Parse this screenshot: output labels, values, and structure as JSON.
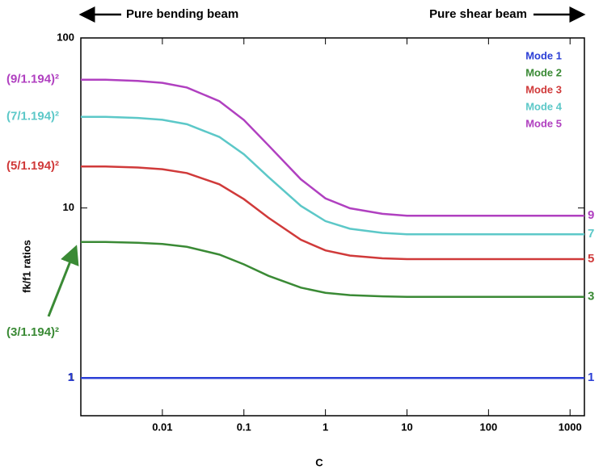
{
  "chart_data": {
    "type": "line",
    "top_left_label": "Pure bending beam",
    "top_right_label": "Pure shear beam",
    "xlabel": "C",
    "ylabel": "fk/f1 ratios",
    "log_x": true,
    "log_y": true,
    "xlim": [
      0.001,
      1500
    ],
    "ylim": [
      0.6,
      100
    ],
    "xticks": [
      0.01,
      0.1,
      1,
      10,
      100,
      1000
    ],
    "yticks": [
      1,
      10,
      100
    ],
    "legend": "upper right",
    "x": [
      0.001,
      0.002,
      0.005,
      0.01,
      0.02,
      0.05,
      0.1,
      0.2,
      0.5,
      1,
      2,
      5,
      10,
      100,
      1000,
      1500
    ],
    "series": [
      {
        "name": "Mode 1",
        "color": "#2b3fd6",
        "end_label": "1",
        "start_label": "1",
        "values": [
          1,
          1,
          1,
          1,
          1,
          1,
          1,
          1,
          1,
          1,
          1,
          1,
          1,
          1,
          1,
          1
        ]
      },
      {
        "name": "Mode 2",
        "color": "#3a8a35",
        "end_label": "3",
        "start_label": "(3/1.194)²",
        "values": [
          6.31,
          6.31,
          6.24,
          6.14,
          5.91,
          5.32,
          4.66,
          3.99,
          3.4,
          3.17,
          3.07,
          3.02,
          3,
          3,
          3,
          3
        ]
      },
      {
        "name": "Mode 3",
        "color": "#d03a3a",
        "end_label": "5",
        "start_label": "(5/1.194)²",
        "values": [
          17.54,
          17.54,
          17.29,
          16.91,
          16.04,
          13.78,
          11.27,
          8.76,
          6.5,
          5.63,
          5.25,
          5.06,
          5,
          5,
          5,
          5
        ]
      },
      {
        "name": "Mode 4",
        "color": "#5cc8c8",
        "end_label": "7",
        "start_label": "(7/1.194)²",
        "values": [
          34.37,
          34.37,
          33.82,
          33.0,
          31.09,
          26.16,
          20.69,
          15.21,
          10.28,
          8.37,
          7.55,
          7.14,
          7,
          7,
          7,
          7
        ]
      },
      {
        "name": "Mode 5",
        "color": "#b040c0",
        "end_label": "9",
        "start_label": "(9/1.194)²",
        "values": [
          56.82,
          56.82,
          55.86,
          54.43,
          51.08,
          42.47,
          32.91,
          23.35,
          14.74,
          11.39,
          9.96,
          9.24,
          9,
          9,
          9,
          9
        ]
      }
    ]
  }
}
